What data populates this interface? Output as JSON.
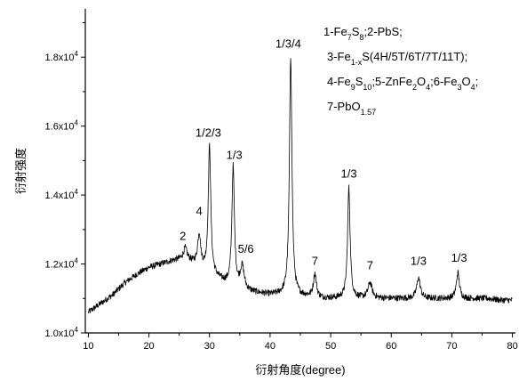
{
  "chart_data": {
    "type": "line",
    "title": "",
    "xlabel": "衍射角度(degree)",
    "ylabel": "衍射强度",
    "xlim": [
      9.5,
      80.5
    ],
    "ylim": [
      10000,
      19400
    ],
    "grid": false,
    "legend": "none",
    "line_color": "#000000",
    "x_ticks": [
      10,
      20,
      30,
      40,
      50,
      60,
      70,
      80
    ],
    "x_tick_labels": [
      "10",
      "20",
      "30",
      "40",
      "50",
      "60",
      "70",
      "80"
    ],
    "y_ticks": [
      10000,
      12000,
      14000,
      16000,
      18000
    ],
    "y_tick_labels": [
      {
        "base": "1.0x10",
        "exp": "4"
      },
      {
        "base": "1.2x10",
        "exp": "4"
      },
      {
        "base": "1.4x10",
        "exp": "4"
      },
      {
        "base": "1.6x10",
        "exp": "4"
      },
      {
        "base": "1.8x10",
        "exp": "4"
      }
    ],
    "baseline": [
      [
        10,
        10600
      ],
      [
        12,
        10850
      ],
      [
        14,
        11100
      ],
      [
        16,
        11450
      ],
      [
        18,
        11700
      ],
      [
        20,
        11900
      ],
      [
        22,
        12000
      ],
      [
        24,
        12100
      ],
      [
        26,
        12150
      ],
      [
        27,
        12050
      ],
      [
        28,
        11950
      ],
      [
        29,
        11800
      ],
      [
        30,
        11700
      ],
      [
        31,
        11600
      ],
      [
        32,
        11500
      ],
      [
        33,
        11400
      ],
      [
        34,
        11300
      ],
      [
        35,
        11250
      ],
      [
        36,
        11200
      ],
      [
        38,
        11150
      ],
      [
        40,
        11100
      ],
      [
        42,
        11100
      ],
      [
        44,
        11050
      ],
      [
        46,
        11050
      ],
      [
        48,
        11000
      ],
      [
        50,
        11000
      ],
      [
        52,
        11000
      ],
      [
        54,
        11000
      ],
      [
        56,
        11000
      ],
      [
        58,
        11000
      ],
      [
        60,
        11000
      ],
      [
        62,
        11000
      ],
      [
        64,
        11000
      ],
      [
        66,
        11000
      ],
      [
        68,
        11000
      ],
      [
        70,
        11000
      ],
      [
        72,
        11000
      ],
      [
        74,
        11000
      ],
      [
        76,
        11000
      ],
      [
        78,
        10950
      ],
      [
        80,
        10950
      ]
    ],
    "peaks": [
      {
        "x": 26.0,
        "y": 12450,
        "width": 0.35
      },
      {
        "x": 28.3,
        "y": 12850,
        "width": 0.3
      },
      {
        "x": 30.0,
        "y": 15400,
        "width": 0.25
      },
      {
        "x": 33.9,
        "y": 14800,
        "width": 0.25
      },
      {
        "x": 35.4,
        "y": 11900,
        "width": 0.4
      },
      {
        "x": 43.4,
        "y": 18000,
        "width": 0.25
      },
      {
        "x": 47.4,
        "y": 11700,
        "width": 0.3
      },
      {
        "x": 53.0,
        "y": 14200,
        "width": 0.25
      },
      {
        "x": 56.5,
        "y": 11450,
        "width": 0.4
      },
      {
        "x": 64.5,
        "y": 11600,
        "width": 0.35
      },
      {
        "x": 71.0,
        "y": 11750,
        "width": 0.3
      }
    ],
    "noise_amplitude": 90,
    "annotations": [
      {
        "text": "2",
        "x": 25.6,
        "y": 12700
      },
      {
        "text": "4",
        "x": 28.3,
        "y": 13420
      },
      {
        "text": "1/2/3",
        "x": 29.8,
        "y": 15700
      },
      {
        "text": "1/3",
        "x": 34.1,
        "y": 15050
      },
      {
        "text": "5/6",
        "x": 36.0,
        "y": 12320
      },
      {
        "text": "1/3/4",
        "x": 43.0,
        "y": 18280
      },
      {
        "text": "7",
        "x": 47.4,
        "y": 11980
      },
      {
        "text": "1/3",
        "x": 53.0,
        "y": 14510
      },
      {
        "text": "7",
        "x": 56.5,
        "y": 11850
      },
      {
        "text": "1/3",
        "x": 64.5,
        "y": 11980
      },
      {
        "text": "1/3",
        "x": 71.2,
        "y": 12070
      }
    ],
    "phase_legend": [
      [
        {
          "t": "1-Fe"
        },
        {
          "t": "7",
          "sub": true
        },
        {
          "t": "S"
        },
        {
          "t": "8",
          "sub": true
        },
        {
          "t": ";2-PbS;"
        }
      ],
      [
        {
          "t": "3-Fe"
        },
        {
          "t": "1-x",
          "sub": true
        },
        {
          "t": "S(4H/5T/6T/7T/11T);"
        }
      ],
      [
        {
          "t": "4-Fe"
        },
        {
          "t": "9",
          "sub": true
        },
        {
          "t": "S"
        },
        {
          "t": "10",
          "sub": true
        },
        {
          "t": ";5-ZnFe"
        },
        {
          "t": "2",
          "sub": true
        },
        {
          "t": "O"
        },
        {
          "t": "4",
          "sub": true
        },
        {
          "t": ";6-Fe"
        },
        {
          "t": "3",
          "sub": true
        },
        {
          "t": "O"
        },
        {
          "t": "4",
          "sub": true
        },
        {
          "t": ";"
        }
      ],
      [
        {
          "t": "7-PbO"
        },
        {
          "t": "1.57",
          "sub": true
        }
      ]
    ]
  }
}
